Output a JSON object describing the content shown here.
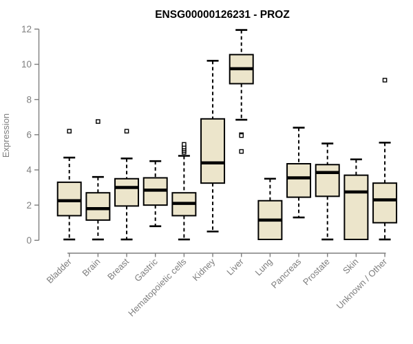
{
  "chart_data": {
    "type": "boxplot",
    "title": "ENSG00000126231 - PROZ",
    "xlabel": "",
    "ylabel": "Expression",
    "ylim": [
      0,
      12
    ],
    "yticks": [
      0,
      2,
      4,
      6,
      8,
      10,
      12
    ],
    "grid": false,
    "legend": null,
    "categories": [
      "Bladder",
      "Brain",
      "Breast",
      "Gastric",
      "Hematopoietic cells",
      "Kidney",
      "Liver",
      "Lung",
      "Pancreas",
      "Prostate",
      "Skin",
      "Unknown / Other"
    ],
    "boxes": [
      {
        "label": "Bladder",
        "low": 0.05,
        "q1": 1.4,
        "median": 2.25,
        "q3": 3.3,
        "high": 4.7,
        "outliers": [
          6.2
        ]
      },
      {
        "label": "Brain",
        "low": 0.05,
        "q1": 1.15,
        "median": 1.8,
        "q3": 2.7,
        "high": 3.6,
        "outliers": [
          6.75
        ]
      },
      {
        "label": "Breast",
        "low": 0.05,
        "q1": 1.95,
        "median": 3.0,
        "q3": 3.5,
        "high": 4.65,
        "outliers": [
          6.2
        ]
      },
      {
        "label": "Gastric",
        "low": 0.8,
        "q1": 2.0,
        "median": 2.85,
        "q3": 3.55,
        "high": 4.5,
        "outliers": []
      },
      {
        "label": "Hematopoietic cells",
        "low": 0.05,
        "q1": 1.4,
        "median": 2.1,
        "q3": 2.7,
        "high": 4.8,
        "outliers": [
          5.0,
          5.1,
          5.2,
          5.3,
          5.45
        ]
      },
      {
        "label": "Kidney",
        "low": 0.5,
        "q1": 3.25,
        "median": 4.4,
        "q3": 6.9,
        "high": 10.2,
        "outliers": []
      },
      {
        "label": "Liver",
        "low": 6.85,
        "q1": 8.9,
        "median": 9.75,
        "q3": 10.55,
        "high": 11.95,
        "outliers": [
          6.0,
          5.95,
          5.05
        ]
      },
      {
        "label": "Lung",
        "low": 0.05,
        "q1": 0.05,
        "median": 1.15,
        "q3": 2.25,
        "high": 3.5,
        "outliers": []
      },
      {
        "label": "Pancreas",
        "low": 1.3,
        "q1": 2.45,
        "median": 3.55,
        "q3": 4.35,
        "high": 6.4,
        "outliers": []
      },
      {
        "label": "Prostate",
        "low": 0.05,
        "q1": 2.5,
        "median": 3.85,
        "q3": 4.3,
        "high": 5.5,
        "outliers": []
      },
      {
        "label": "Skin",
        "low": 0.05,
        "q1": 0.05,
        "median": 2.75,
        "q3": 3.7,
        "high": 4.6,
        "outliers": []
      },
      {
        "label": "Unknown / Other",
        "low": 0.05,
        "q1": 1.0,
        "median": 2.3,
        "q3": 3.25,
        "high": 5.55,
        "outliers": [
          9.1
        ]
      }
    ]
  },
  "colors": {
    "background": "#FFFFFF",
    "box_fill": "#ECE5CB",
    "box_border": "#000000",
    "median": "#000000",
    "whisker": "#000000",
    "outlier_stroke": "#000000",
    "outlier_fill": "#FFFFFF",
    "axis": "#7E7E7E",
    "tick_label": "#7E7E7E",
    "title": "#000000"
  }
}
